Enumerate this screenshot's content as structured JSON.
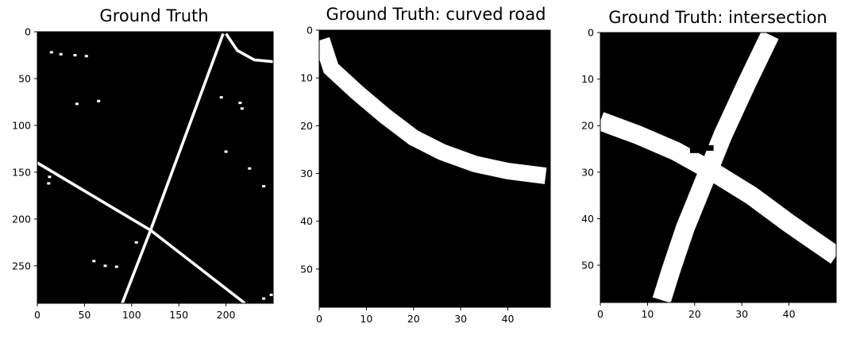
{
  "chart_data": [
    {
      "type": "heatmap",
      "title": "Ground Truth",
      "colormap": "binary (white = road, black = background)",
      "xlim": [
        0,
        250
      ],
      "ylim": [
        290,
        0
      ],
      "x_ticks": [
        0,
        50,
        100,
        150,
        200
      ],
      "y_ticks": [
        0,
        50,
        100,
        150,
        200,
        250
      ],
      "road_segments": [
        {
          "name": "diagonal road",
          "points": [
            [
              0,
              140
            ],
            [
              120,
              212
            ],
            [
              220,
              290
            ]
          ],
          "width": 3
        },
        {
          "name": "long straight road",
          "points": [
            [
              197,
              2
            ],
            [
              120,
              212
            ],
            [
              90,
              290
            ]
          ],
          "width": 3
        },
        {
          "name": "top-right curve",
          "points": [
            [
              200,
              2
            ],
            [
              212,
              20
            ],
            [
              230,
              30
            ],
            [
              250,
              32
            ]
          ],
          "width": 3
        }
      ],
      "noise_blobs": [
        [
          15,
          22
        ],
        [
          25,
          24
        ],
        [
          40,
          25
        ],
        [
          52,
          26
        ],
        [
          42,
          77
        ],
        [
          65,
          74
        ],
        [
          195,
          70
        ],
        [
          215,
          76
        ],
        [
          217,
          82
        ],
        [
          13,
          155
        ],
        [
          12,
          162
        ],
        [
          60,
          245
        ],
        [
          72,
          250
        ],
        [
          84,
          251
        ],
        [
          105,
          225
        ],
        [
          240,
          285
        ],
        [
          248,
          281
        ],
        [
          200,
          128
        ],
        [
          225,
          146
        ],
        [
          240,
          165
        ]
      ]
    },
    {
      "type": "heatmap",
      "title": "Ground Truth: curved road",
      "colormap": "binary (white = road, black = background)",
      "xlim": [
        0,
        49
      ],
      "ylim": [
        58,
        0
      ],
      "x_ticks": [
        0,
        10,
        20,
        30,
        40
      ],
      "y_ticks": [
        0,
        10,
        20,
        30,
        40,
        50
      ],
      "road_segments": [
        {
          "name": "curved road",
          "points": [
            [
              0.5,
              2
            ],
            [
              2.5,
              8
            ],
            [
              8,
              13
            ],
            [
              14,
              18
            ],
            [
              20,
              22.5
            ],
            [
              26,
              25.5
            ],
            [
              33,
              28
            ],
            [
              40,
              29.5
            ],
            [
              48,
              30.5
            ]
          ],
          "width": 3.5
        }
      ]
    },
    {
      "type": "heatmap",
      "title": "Ground Truth: intersection",
      "colormap": "binary (white = road, black = background)",
      "xlim": [
        0,
        50
      ],
      "ylim": [
        58,
        0
      ],
      "x_ticks": [
        0,
        10,
        20,
        30,
        40
      ],
      "y_ticks": [
        0,
        10,
        20,
        30,
        40,
        50
      ],
      "road_segments": [
        {
          "name": "diagonal road",
          "points": [
            [
              0,
              19
            ],
            [
              8,
              22
            ],
            [
              16,
              25.5
            ],
            [
              24,
              30
            ],
            [
              32,
              35
            ],
            [
              40,
              41
            ],
            [
              50,
              48
            ]
          ],
          "width": 4
        },
        {
          "name": "steep road",
          "points": [
            [
              36,
              0.5
            ],
            [
              31,
              11
            ],
            [
              26,
              22
            ],
            [
              22,
              32
            ],
            [
              18,
              42
            ],
            [
              15,
              51
            ],
            [
              13,
              57.5
            ]
          ],
          "width": 4
        }
      ],
      "holes": [
        [
          20,
          25.3
        ],
        [
          23,
          24.8
        ]
      ]
    }
  ]
}
